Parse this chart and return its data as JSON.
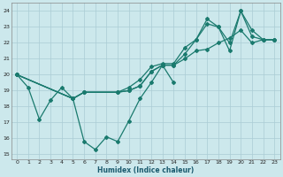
{
  "xlabel": "Humidex (Indice chaleur)",
  "bg_color": "#cce8ec",
  "grid_color": "#aaccd4",
  "line_color": "#1a7a6e",
  "xlim": [
    -0.5,
    23.5
  ],
  "ylim": [
    14.7,
    24.5
  ],
  "xticks": [
    0,
    1,
    2,
    3,
    4,
    5,
    6,
    7,
    8,
    9,
    10,
    11,
    12,
    13,
    14,
    15,
    16,
    17,
    18,
    19,
    20,
    21,
    22,
    23
  ],
  "yticks": [
    15,
    16,
    17,
    18,
    19,
    20,
    21,
    22,
    23,
    24
  ],
  "line1_x": [
    0,
    1,
    2,
    3,
    4,
    5,
    6,
    7,
    8,
    9,
    10,
    11,
    12,
    13,
    14
  ],
  "line1_y": [
    20,
    19.2,
    17.2,
    18.4,
    19.2,
    18.5,
    15.8,
    15.3,
    16.1,
    15.8,
    17.1,
    18.5,
    19.5,
    20.6,
    19.5
  ],
  "line2_x": [
    0,
    5,
    6,
    9,
    10,
    11,
    12,
    13,
    14,
    15,
    16,
    17,
    18,
    19,
    20,
    21,
    22,
    23
  ],
  "line2_y": [
    20,
    18.5,
    18.9,
    18.9,
    19.2,
    19.7,
    20.5,
    20.7,
    20.7,
    21.7,
    22.2,
    23.5,
    23.0,
    22.0,
    24.0,
    22.8,
    22.2,
    22.2
  ],
  "line3_x": [
    0,
    5,
    6,
    9,
    10,
    11,
    12,
    13,
    14,
    15,
    16,
    17,
    18,
    19,
    20,
    21,
    22,
    23
  ],
  "line3_y": [
    20,
    18.5,
    18.9,
    18.9,
    19.0,
    19.3,
    20.2,
    20.6,
    20.6,
    21.3,
    22.2,
    23.2,
    23.0,
    21.5,
    24.0,
    22.4,
    22.2,
    22.2
  ],
  "line4_x": [
    0,
    5,
    6,
    9,
    10,
    11,
    12,
    13,
    14,
    15,
    16,
    17,
    18,
    19,
    20,
    21,
    22,
    23
  ],
  "line4_y": [
    20,
    18.5,
    18.9,
    18.9,
    19.0,
    19.3,
    20.2,
    20.6,
    20.6,
    21.0,
    21.5,
    21.6,
    22.0,
    22.3,
    22.8,
    22.0,
    22.2,
    22.2
  ]
}
